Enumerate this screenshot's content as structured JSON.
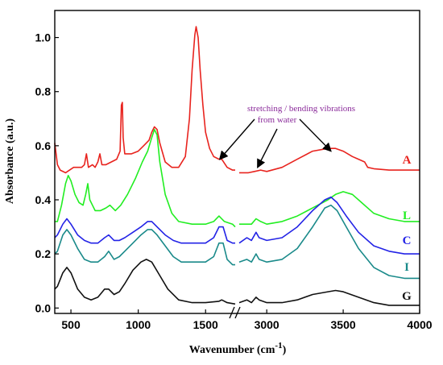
{
  "chart_data": {
    "type": "line",
    "xlabel": "Wavenumber (cm",
    "xlabel_sup": "-1",
    "xlabel_tail": ")",
    "ylabel": "Absorbance (a.u.)",
    "xlim": [
      380,
      4000
    ],
    "ylim": [
      -0.02,
      1.1
    ],
    "x_break_after": 1720,
    "x_resume_at": 2820,
    "x_ticks": [
      "500",
      "1000",
      "1500",
      "3000",
      "3500",
      "4000"
    ],
    "y_ticks": [
      "0.0",
      "0.2",
      "0.4",
      "0.6",
      "0.8",
      "1.0"
    ],
    "annotation": {
      "line1": "stretching / bending vibrations",
      "line2": "from water",
      "arrows_to": [
        [
          1605,
          0.55
        ],
        [
          2940,
          0.52
        ],
        [
          3420,
          0.58
        ]
      ]
    },
    "series": [
      {
        "name": "A",
        "color": "#e8231e",
        "points": [
          [
            380,
            0.61
          ],
          [
            400,
            0.53
          ],
          [
            420,
            0.51
          ],
          [
            460,
            0.5
          ],
          [
            520,
            0.52
          ],
          [
            580,
            0.52
          ],
          [
            600,
            0.53
          ],
          [
            615,
            0.57
          ],
          [
            630,
            0.52
          ],
          [
            660,
            0.53
          ],
          [
            680,
            0.52
          ],
          [
            700,
            0.54
          ],
          [
            715,
            0.57
          ],
          [
            730,
            0.53
          ],
          [
            760,
            0.53
          ],
          [
            800,
            0.54
          ],
          [
            840,
            0.55
          ],
          [
            865,
            0.58
          ],
          [
            875,
            0.75
          ],
          [
            882,
            0.76
          ],
          [
            888,
            0.63
          ],
          [
            900,
            0.57
          ],
          [
            950,
            0.57
          ],
          [
            1000,
            0.58
          ],
          [
            1040,
            0.6
          ],
          [
            1080,
            0.62
          ],
          [
            1100,
            0.65
          ],
          [
            1120,
            0.67
          ],
          [
            1140,
            0.66
          ],
          [
            1160,
            0.61
          ],
          [
            1200,
            0.54
          ],
          [
            1250,
            0.52
          ],
          [
            1300,
            0.52
          ],
          [
            1350,
            0.56
          ],
          [
            1380,
            0.7
          ],
          [
            1400,
            0.88
          ],
          [
            1420,
            1.01
          ],
          [
            1430,
            1.04
          ],
          [
            1445,
            1.0
          ],
          [
            1460,
            0.88
          ],
          [
            1480,
            0.75
          ],
          [
            1500,
            0.65
          ],
          [
            1530,
            0.59
          ],
          [
            1560,
            0.56
          ],
          [
            1600,
            0.55
          ],
          [
            1620,
            0.55
          ],
          [
            1660,
            0.52
          ],
          [
            1700,
            0.51
          ],
          [
            1720,
            0.51
          ],
          [
            2820,
            0.5
          ],
          [
            2880,
            0.5
          ],
          [
            2920,
            0.505
          ],
          [
            2960,
            0.51
          ],
          [
            3000,
            0.505
          ],
          [
            3100,
            0.52
          ],
          [
            3200,
            0.55
          ],
          [
            3300,
            0.58
          ],
          [
            3400,
            0.59
          ],
          [
            3450,
            0.59
          ],
          [
            3500,
            0.58
          ],
          [
            3560,
            0.56
          ],
          [
            3600,
            0.55
          ],
          [
            3640,
            0.54
          ],
          [
            3660,
            0.52
          ],
          [
            3700,
            0.515
          ],
          [
            3800,
            0.51
          ],
          [
            3900,
            0.51
          ],
          [
            4000,
            0.51
          ]
        ]
      },
      {
        "name": "L",
        "color": "#22ee22",
        "points": [
          [
            380,
            0.32
          ],
          [
            400,
            0.32
          ],
          [
            430,
            0.38
          ],
          [
            460,
            0.46
          ],
          [
            480,
            0.49
          ],
          [
            500,
            0.47
          ],
          [
            530,
            0.42
          ],
          [
            560,
            0.39
          ],
          [
            590,
            0.38
          ],
          [
            610,
            0.42
          ],
          [
            625,
            0.46
          ],
          [
            640,
            0.4
          ],
          [
            680,
            0.36
          ],
          [
            720,
            0.36
          ],
          [
            760,
            0.37
          ],
          [
            790,
            0.38
          ],
          [
            830,
            0.36
          ],
          [
            870,
            0.38
          ],
          [
            920,
            0.42
          ],
          [
            980,
            0.48
          ],
          [
            1030,
            0.54
          ],
          [
            1070,
            0.58
          ],
          [
            1100,
            0.63
          ],
          [
            1120,
            0.66
          ],
          [
            1140,
            0.64
          ],
          [
            1160,
            0.54
          ],
          [
            1200,
            0.42
          ],
          [
            1250,
            0.35
          ],
          [
            1300,
            0.32
          ],
          [
            1400,
            0.31
          ],
          [
            1500,
            0.31
          ],
          [
            1560,
            0.32
          ],
          [
            1600,
            0.34
          ],
          [
            1640,
            0.32
          ],
          [
            1700,
            0.31
          ],
          [
            1720,
            0.3
          ],
          [
            2820,
            0.31
          ],
          [
            2900,
            0.31
          ],
          [
            2930,
            0.33
          ],
          [
            2960,
            0.32
          ],
          [
            3000,
            0.31
          ],
          [
            3100,
            0.32
          ],
          [
            3200,
            0.34
          ],
          [
            3300,
            0.37
          ],
          [
            3400,
            0.4
          ],
          [
            3450,
            0.42
          ],
          [
            3500,
            0.43
          ],
          [
            3560,
            0.42
          ],
          [
            3620,
            0.39
          ],
          [
            3700,
            0.35
          ],
          [
            3800,
            0.33
          ],
          [
            3900,
            0.32
          ],
          [
            4000,
            0.32
          ]
        ]
      },
      {
        "name": "C",
        "color": "#2323e6",
        "points": [
          [
            380,
            0.26
          ],
          [
            400,
            0.27
          ],
          [
            440,
            0.31
          ],
          [
            470,
            0.33
          ],
          [
            500,
            0.31
          ],
          [
            550,
            0.27
          ],
          [
            600,
            0.25
          ],
          [
            650,
            0.24
          ],
          [
            700,
            0.24
          ],
          [
            750,
            0.26
          ],
          [
            780,
            0.27
          ],
          [
            820,
            0.25
          ],
          [
            860,
            0.25
          ],
          [
            900,
            0.26
          ],
          [
            960,
            0.28
          ],
          [
            1020,
            0.3
          ],
          [
            1070,
            0.32
          ],
          [
            1100,
            0.32
          ],
          [
            1140,
            0.3
          ],
          [
            1200,
            0.27
          ],
          [
            1260,
            0.25
          ],
          [
            1320,
            0.24
          ],
          [
            1400,
            0.24
          ],
          [
            1500,
            0.24
          ],
          [
            1560,
            0.26
          ],
          [
            1600,
            0.3
          ],
          [
            1630,
            0.3
          ],
          [
            1660,
            0.25
          ],
          [
            1700,
            0.24
          ],
          [
            1720,
            0.24
          ],
          [
            2820,
            0.24
          ],
          [
            2870,
            0.26
          ],
          [
            2900,
            0.25
          ],
          [
            2930,
            0.28
          ],
          [
            2950,
            0.26
          ],
          [
            3000,
            0.25
          ],
          [
            3100,
            0.26
          ],
          [
            3200,
            0.3
          ],
          [
            3300,
            0.36
          ],
          [
            3380,
            0.4
          ],
          [
            3420,
            0.41
          ],
          [
            3460,
            0.39
          ],
          [
            3520,
            0.34
          ],
          [
            3600,
            0.28
          ],
          [
            3700,
            0.23
          ],
          [
            3800,
            0.21
          ],
          [
            3900,
            0.2
          ],
          [
            4000,
            0.2
          ]
        ]
      },
      {
        "name": "I",
        "color": "#1a8a8a",
        "points": [
          [
            380,
            0.2
          ],
          [
            400,
            0.21
          ],
          [
            440,
            0.27
          ],
          [
            470,
            0.29
          ],
          [
            500,
            0.27
          ],
          [
            550,
            0.22
          ],
          [
            600,
            0.18
          ],
          [
            650,
            0.17
          ],
          [
            700,
            0.17
          ],
          [
            750,
            0.19
          ],
          [
            780,
            0.21
          ],
          [
            820,
            0.18
          ],
          [
            860,
            0.19
          ],
          [
            900,
            0.21
          ],
          [
            960,
            0.24
          ],
          [
            1020,
            0.27
          ],
          [
            1070,
            0.29
          ],
          [
            1100,
            0.29
          ],
          [
            1140,
            0.27
          ],
          [
            1200,
            0.23
          ],
          [
            1260,
            0.19
          ],
          [
            1320,
            0.17
          ],
          [
            1400,
            0.17
          ],
          [
            1500,
            0.17
          ],
          [
            1560,
            0.19
          ],
          [
            1600,
            0.24
          ],
          [
            1630,
            0.24
          ],
          [
            1660,
            0.18
          ],
          [
            1700,
            0.16
          ],
          [
            1720,
            0.16
          ],
          [
            2820,
            0.17
          ],
          [
            2870,
            0.18
          ],
          [
            2900,
            0.17
          ],
          [
            2930,
            0.2
          ],
          [
            2950,
            0.18
          ],
          [
            3000,
            0.17
          ],
          [
            3100,
            0.18
          ],
          [
            3200,
            0.22
          ],
          [
            3300,
            0.3
          ],
          [
            3380,
            0.37
          ],
          [
            3420,
            0.38
          ],
          [
            3460,
            0.36
          ],
          [
            3520,
            0.3
          ],
          [
            3600,
            0.22
          ],
          [
            3700,
            0.15
          ],
          [
            3800,
            0.12
          ],
          [
            3900,
            0.11
          ],
          [
            4000,
            0.11
          ]
        ]
      },
      {
        "name": "G",
        "color": "#111111",
        "points": [
          [
            380,
            0.07
          ],
          [
            400,
            0.08
          ],
          [
            440,
            0.13
          ],
          [
            470,
            0.15
          ],
          [
            500,
            0.13
          ],
          [
            550,
            0.07
          ],
          [
            600,
            0.04
          ],
          [
            650,
            0.03
          ],
          [
            700,
            0.04
          ],
          [
            750,
            0.07
          ],
          [
            780,
            0.07
          ],
          [
            820,
            0.05
          ],
          [
            860,
            0.06
          ],
          [
            900,
            0.09
          ],
          [
            960,
            0.14
          ],
          [
            1020,
            0.17
          ],
          [
            1060,
            0.18
          ],
          [
            1100,
            0.17
          ],
          [
            1160,
            0.12
          ],
          [
            1220,
            0.07
          ],
          [
            1300,
            0.03
          ],
          [
            1400,
            0.02
          ],
          [
            1500,
            0.02
          ],
          [
            1600,
            0.025
          ],
          [
            1620,
            0.03
          ],
          [
            1660,
            0.02
          ],
          [
            1720,
            0.015
          ],
          [
            2820,
            0.02
          ],
          [
            2870,
            0.03
          ],
          [
            2900,
            0.02
          ],
          [
            2930,
            0.04
          ],
          [
            2950,
            0.03
          ],
          [
            3000,
            0.02
          ],
          [
            3100,
            0.02
          ],
          [
            3200,
            0.03
          ],
          [
            3300,
            0.05
          ],
          [
            3400,
            0.06
          ],
          [
            3450,
            0.065
          ],
          [
            3500,
            0.06
          ],
          [
            3600,
            0.04
          ],
          [
            3700,
            0.02
          ],
          [
            3800,
            0.01
          ],
          [
            3900,
            0.01
          ],
          [
            4000,
            0.01
          ]
        ]
      }
    ]
  }
}
